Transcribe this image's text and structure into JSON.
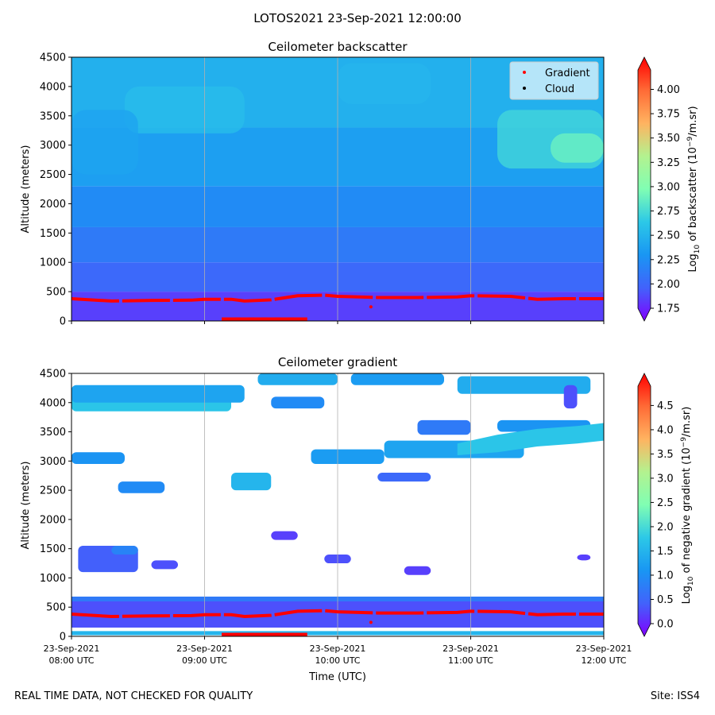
{
  "figure": {
    "suptitle": "LOTOS2021 23-Sep-2021 12:00:00",
    "footer_left": "REAL TIME DATA, NOT CHECKED FOR QUALITY",
    "footer_right": "Site: ISS4"
  },
  "colors": {
    "gradient_marker": "#ff0000",
    "cloud_marker": "#000000",
    "grid": "#b0b0b0",
    "legend_bg": "#cfeffa"
  },
  "chart_data": [
    {
      "type": "heatmap",
      "title": "Ceilometer backscatter",
      "ylabel": "Altitude (meters)",
      "xlabel": "",
      "ylim": [
        0,
        4500
      ],
      "yticks": [
        "0",
        "500",
        "1000",
        "1500",
        "2000",
        "2500",
        "3000",
        "3500",
        "4000",
        "4500"
      ],
      "time_range_hours": [
        8,
        12
      ],
      "colorbar": {
        "label_prefix": "Log",
        "label_sub": "10",
        "label_mid": " of backscatter (10",
        "label_sup": "−9",
        "label_suffix": "/m.sr)",
        "range": [
          1.75,
          4.2
        ],
        "ticks": [
          "1.75",
          "2.00",
          "2.25",
          "2.50",
          "2.75",
          "3.00",
          "3.25",
          "3.50",
          "3.75",
          "4.00"
        ]
      },
      "legend": [
        {
          "label": "Gradient",
          "color": "#ff0000"
        },
        {
          "label": "Cloud",
          "color": "#000000"
        }
      ],
      "layers": [
        {
          "ymin": 0,
          "ymax": 500,
          "value": 1.95
        },
        {
          "ymin": 500,
          "ymax": 1000,
          "value": 2.1
        },
        {
          "ymin": 1000,
          "ymax": 1600,
          "value": 2.2
        },
        {
          "ymin": 1600,
          "ymax": 2300,
          "value": 2.3
        },
        {
          "ymin": 2300,
          "ymax": 3300,
          "value": 2.42
        },
        {
          "ymin": 3300,
          "ymax": 4500,
          "value": 2.52
        }
      ],
      "patches": [
        {
          "t0": 8.4,
          "t1": 9.3,
          "z0": 3200,
          "z1": 4000,
          "value": 2.6
        },
        {
          "t0": 8.0,
          "t1": 8.5,
          "z0": 2500,
          "z1": 3600,
          "value": 2.45
        },
        {
          "t0": 10.0,
          "t1": 10.7,
          "z0": 3700,
          "z1": 4400,
          "value": 2.55
        },
        {
          "t0": 11.2,
          "t1": 12.0,
          "z0": 2600,
          "z1": 3600,
          "value": 2.75
        },
        {
          "t0": 11.6,
          "t1": 12.0,
          "z0": 2700,
          "z1": 3200,
          "value": 2.9
        }
      ],
      "gradient_line": {
        "time": [
          8.0,
          8.3,
          8.6,
          8.9,
          9.0,
          9.2,
          9.3,
          9.5,
          9.7,
          9.9,
          10.0,
          10.3,
          10.6,
          10.9,
          11.0,
          11.3,
          11.5,
          11.7,
          12.0
        ],
        "altitude": [
          380,
          340,
          350,
          355,
          370,
          370,
          340,
          360,
          430,
          440,
          420,
          400,
          400,
          410,
          430,
          420,
          370,
          380,
          380
        ]
      },
      "cloud_points": {
        "time": [
          9.2,
          9.3,
          9.4,
          9.5,
          9.6,
          9.7
        ],
        "altitude": [
          20,
          20,
          20,
          20,
          20,
          20
        ]
      }
    },
    {
      "type": "heatmap",
      "title": "Ceilometer gradient",
      "ylabel": "Altitude (meters)",
      "xlabel": "Time (UTC)",
      "ylim": [
        0,
        4500
      ],
      "yticks": [
        "0",
        "500",
        "1000",
        "1500",
        "2000",
        "2500",
        "3000",
        "3500",
        "4000",
        "4500"
      ],
      "xticks": [
        {
          "date": "23-Sep-2021",
          "time": "08:00 UTC"
        },
        {
          "date": "23-Sep-2021",
          "time": "09:00 UTC"
        },
        {
          "date": "23-Sep-2021",
          "time": "10:00 UTC"
        },
        {
          "date": "23-Sep-2021",
          "time": "11:00 UTC"
        },
        {
          "date": "23-Sep-2021",
          "time": "12:00 UTC"
        }
      ],
      "colorbar": {
        "label_prefix": "Log",
        "label_sub": "10",
        "label_mid": " of negative gradient (10",
        "label_sup": "−9",
        "label_suffix": "/m.sr)",
        "range": [
          0.0,
          4.9
        ],
        "ticks": [
          "0.0",
          "0.5",
          "1.0",
          "1.5",
          "2.0",
          "2.5",
          "3.0",
          "3.5",
          "4.0",
          "4.5"
        ]
      },
      "boundary_layer": {
        "zmin": 150,
        "zmax": 680,
        "value_low": 0.5,
        "value_high": 0.9
      },
      "surface_strip": {
        "zmin": 20,
        "zmax": 90,
        "value": 1.6
      },
      "patches": [
        {
          "t0": 8.0,
          "t1": 9.2,
          "z0": 3850,
          "z1": 4150,
          "value": 1.8
        },
        {
          "t0": 8.0,
          "t1": 9.3,
          "z0": 4000,
          "z1": 4300,
          "value": 1.4
        },
        {
          "t0": 9.4,
          "t1": 10.0,
          "z0": 4300,
          "z1": 4500,
          "value": 1.5
        },
        {
          "t0": 10.1,
          "t1": 10.8,
          "z0": 4300,
          "z1": 4500,
          "value": 1.3
        },
        {
          "t0": 9.5,
          "t1": 9.9,
          "z0": 3900,
          "z1": 4100,
          "value": 1.1
        },
        {
          "t0": 10.9,
          "t1": 11.9,
          "z0": 4150,
          "z1": 4450,
          "value": 1.5
        },
        {
          "t0": 8.0,
          "t1": 8.4,
          "z0": 2950,
          "z1": 3150,
          "value": 1.2
        },
        {
          "t0": 8.35,
          "t1": 8.7,
          "z0": 2450,
          "z1": 2650,
          "value": 1.1
        },
        {
          "t0": 9.2,
          "t1": 9.5,
          "z0": 2500,
          "z1": 2800,
          "value": 1.6
        },
        {
          "t0": 9.8,
          "t1": 10.35,
          "z0": 2950,
          "z1": 3200,
          "value": 1.3
        },
        {
          "t0": 10.35,
          "t1": 11.4,
          "z0": 3050,
          "z1": 3350,
          "value": 1.4
        },
        {
          "t0": 10.6,
          "t1": 11.0,
          "z0": 3450,
          "z1": 3700,
          "value": 0.9
        },
        {
          "t0": 10.3,
          "t1": 10.7,
          "z0": 2650,
          "z1": 2800,
          "value": 0.7
        },
        {
          "t0": 11.2,
          "t1": 11.9,
          "z0": 3500,
          "z1": 3700,
          "value": 1.2
        },
        {
          "t0": 8.05,
          "t1": 8.5,
          "z0": 1100,
          "z1": 1550,
          "value": 0.6
        },
        {
          "t0": 8.3,
          "t1": 8.5,
          "z0": 1400,
          "z1": 1550,
          "value": 1.0
        },
        {
          "t0": 8.6,
          "t1": 8.8,
          "z0": 1150,
          "z1": 1300,
          "value": 0.5
        },
        {
          "t0": 9.5,
          "t1": 9.7,
          "z0": 1650,
          "z1": 1800,
          "value": 0.4
        },
        {
          "t0": 9.9,
          "t1": 10.1,
          "z0": 1250,
          "z1": 1400,
          "value": 0.5
        },
        {
          "t0": 10.5,
          "t1": 10.7,
          "z0": 1050,
          "z1": 1200,
          "value": 0.4
        },
        {
          "t0": 11.8,
          "t1": 11.9,
          "z0": 1300,
          "z1": 1400,
          "value": 0.4
        },
        {
          "t0": 11.7,
          "t1": 11.8,
          "z0": 3900,
          "z1": 4300,
          "value": 0.5
        }
      ],
      "band_wave": {
        "time": [
          10.9,
          11.2,
          11.5,
          11.8,
          12.0
        ],
        "z0": [
          3100,
          3150,
          3250,
          3300,
          3350
        ],
        "z1": [
          3300,
          3450,
          3550,
          3600,
          3650
        ],
        "value": 1.8
      },
      "gradient_line": {
        "time": [
          8.0,
          8.3,
          8.6,
          8.9,
          9.0,
          9.2,
          9.3,
          9.5,
          9.7,
          9.9,
          10.0,
          10.3,
          10.6,
          10.9,
          11.0,
          11.3,
          11.5,
          11.7,
          12.0
        ],
        "altitude": [
          380,
          340,
          350,
          355,
          370,
          370,
          340,
          360,
          430,
          440,
          420,
          400,
          400,
          410,
          430,
          420,
          370,
          380,
          380
        ]
      },
      "cloud_points": {
        "time": [
          9.2,
          9.3,
          9.4,
          9.5,
          9.6,
          9.7
        ],
        "altitude": [
          20,
          20,
          20,
          20,
          20,
          20
        ]
      }
    }
  ]
}
